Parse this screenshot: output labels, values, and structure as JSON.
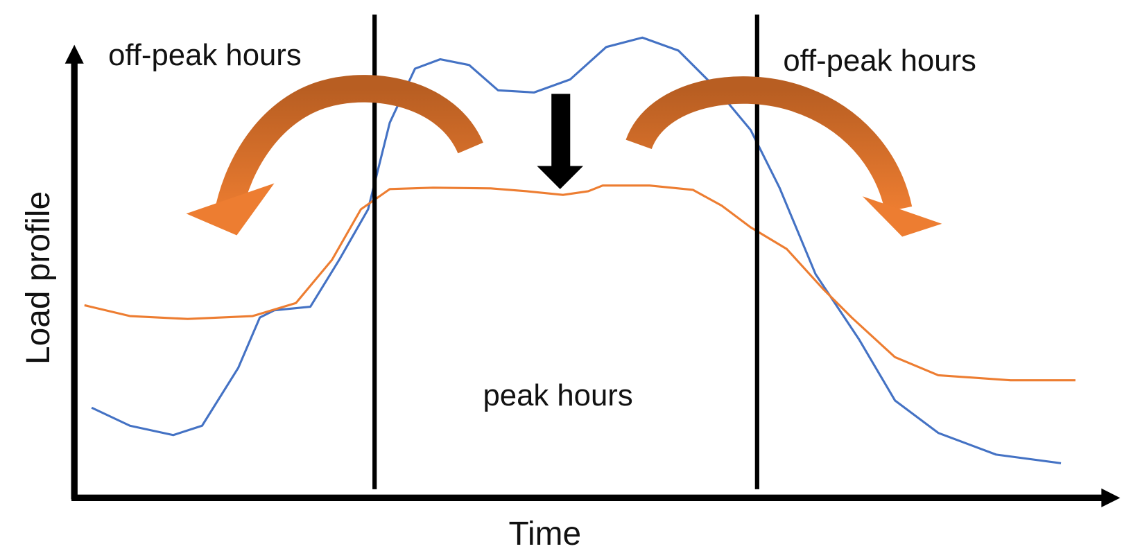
{
  "axes": {
    "y_label": "Load profile",
    "x_label": "Time"
  },
  "regions": [
    {
      "label": "off-peak hours"
    },
    {
      "label": "peak hours"
    },
    {
      "label": "off-peak hours"
    }
  ]
}
